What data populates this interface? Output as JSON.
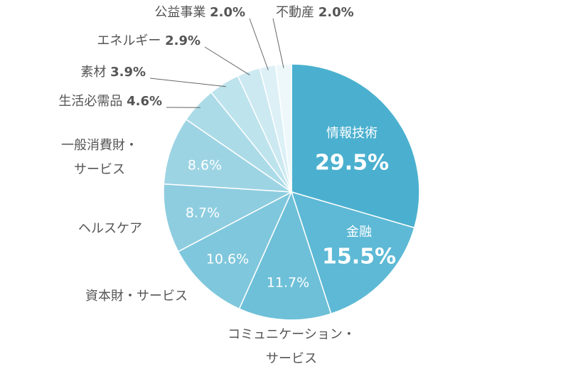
{
  "chart_data": {
    "type": "pie",
    "categories": [
      "情報技術",
      "金融",
      "コミュニケーション・\nサービス",
      "資本財・サービス",
      "ヘルスケア",
      "一般消費財・\nサービス",
      "生活必需品",
      "素材",
      "エネルギー",
      "公益事業",
      "不動産"
    ],
    "values": [
      29.5,
      15.5,
      11.7,
      10.6,
      8.7,
      8.6,
      4.6,
      3.9,
      2.9,
      2.0,
      2.0
    ],
    "value_labels": [
      "29.5%",
      "15.5%",
      "11.7%",
      "10.6%",
      "8.7%",
      "8.6%",
      "4.6%",
      "3.9%",
      "2.9%",
      "2.0%",
      "2.0%"
    ],
    "colors": [
      "#4bb0cf",
      "#5db9d5",
      "#6ec0d8",
      "#7fc7dc",
      "#8ecde0",
      "#9dd4e4",
      "#acdbe8",
      "#bde3ed",
      "#cce9f1",
      "#dcf0f6",
      "#eef8fb"
    ]
  }
}
